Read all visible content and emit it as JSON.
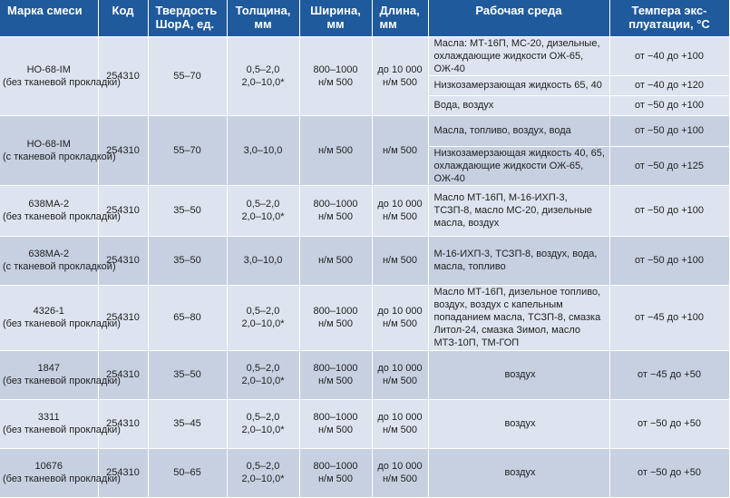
{
  "header": {
    "grade": "Марка смеси",
    "code": "Код",
    "hardness": "Твердость ШорА, ед.",
    "thickness": "Толщина, мм",
    "width": "Ширина, мм",
    "length": "Длина, мм",
    "medium": "Рабочая среда",
    "temp": "Темпера экс-плуатации, °С"
  },
  "groups": [
    {
      "grade": "НО-68-IM\n(без тканевой прокладки)",
      "code": "254310",
      "hardness": "55–70",
      "thickness": "0,5–2,0\n2,0–10,0*",
      "width": "800–1000\nн/м 500",
      "length": "до 10 000\nн/м 500",
      "rows": [
        {
          "medium": "Масла: МТ-16П, МС-20, дизельные, охлаждающие жидкости ОЖ-65, ОЖ-40",
          "temp": "от −40 до +100"
        },
        {
          "medium": "Низкозамерзающая жидкость 65, 40",
          "temp": "от −40 до +120"
        },
        {
          "medium": "Вода, воздух",
          "temp": "от −50 до +100"
        }
      ]
    },
    {
      "grade": "НО-68-IM\n(с тканевой прокладкой)",
      "code": "254310",
      "hardness": "55–70",
      "thickness": "3,0–10,0",
      "width": "н/м 500",
      "length": "н/м 500",
      "rows": [
        {
          "medium": "Масла, топливо, воздух, вода",
          "temp": "от −50 до +100"
        },
        {
          "medium": "Низкозамерзающая жидкость 40, 65, охлаждающие жидкости ОЖ-65, ОЖ-40",
          "temp": "от −50 до +125"
        }
      ]
    },
    {
      "grade": "638МА-2\n(без тканевой прокладки)",
      "code": "254310",
      "hardness": "35–50",
      "thickness": "0,5–2,0\n2,0–10,0*",
      "width": "800–1000\nн/м 500",
      "length": "до 10 000\nн/м 500",
      "rows": [
        {
          "medium": "Масло МТ-16П, М-16-ИХП-3, ТСЗП-8, масло МС-20, дизельные масла, воздух",
          "temp": "от −50 до +100"
        }
      ]
    },
    {
      "grade": "638МА-2\n(с тканевой прокладкой)",
      "code": "254310",
      "hardness": "35–50",
      "thickness": "3,0–10,0",
      "width": "н/м 500",
      "length": "н/м 500",
      "rows": [
        {
          "medium": "М-16-ИХП-3, ТСЗП-8, воздух, вода, масла, топливо",
          "temp": "от −50 до +100"
        }
      ]
    },
    {
      "grade": "4326-1\n(без тканевой прокладки)",
      "code": "254310",
      "hardness": "65–80",
      "thickness": "0,5–2,0\n2,0–10,0*",
      "width": "800–1000\nн/м 500",
      "length": "до 10 000\nн/м 500",
      "rows": [
        {
          "medium": "Масло МТ-16П, дизельное топливо, воздух, воздух с капельным попаданием масла, ТСЗП-8, смазка Литол-24, смазка Зимол, масло МТЗ-10П, ТМ-ГОП",
          "temp": "от −45 до +100"
        }
      ]
    },
    {
      "grade": "1847\n(без тканевой прокладки)",
      "code": "254310",
      "hardness": "35–50",
      "thickness": "0,5–2,0\n2,0–10,0*",
      "width": "800–1000\nн/м 500",
      "length": "до 10 000\nн/м 500",
      "rows": [
        {
          "medium": "воздух",
          "temp": "от −45 до +50"
        }
      ]
    },
    {
      "grade": "3311\n(без тканевой прокладки)",
      "code": "254310",
      "hardness": "35–45",
      "thickness": "0,5–2,0\n2,0–10,0*",
      "width": "800–1000\nн/м 500",
      "length": "до 10 000\nн/м 500",
      "rows": [
        {
          "medium": "воздух",
          "temp": "от −50 до +50"
        }
      ]
    },
    {
      "grade": "10676\n(без тканевой прокладки)",
      "code": "254310",
      "hardness": "50–65",
      "thickness": "0,5–2,0\n2,0–10,0*",
      "width": "800–1000\nн/м 500",
      "length": "до 10 000\nн/м 500",
      "rows": [
        {
          "medium": "воздух",
          "temp": "от −50 до +50"
        }
      ]
    }
  ],
  "colors": {
    "header_bg": "#1f5a9c",
    "row_light": "#dde4ef",
    "row_dark": "#c6d0e1"
  }
}
